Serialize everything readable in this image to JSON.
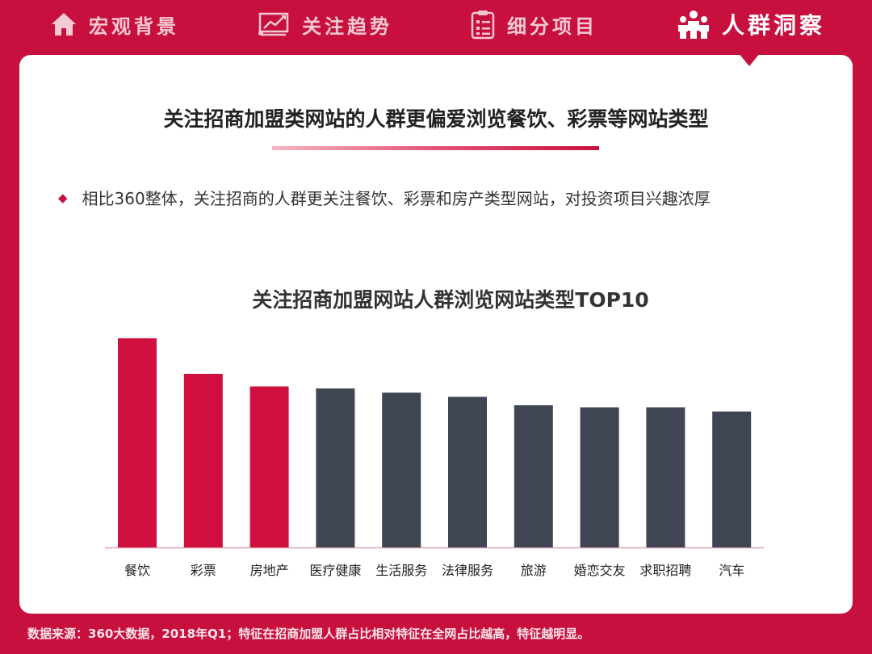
{
  "nav": {
    "items": [
      {
        "label": "宏观背景",
        "icon": "house-icon"
      },
      {
        "label": "关注趋势",
        "icon": "trend-chart-icon"
      },
      {
        "label": "细分项目",
        "icon": "clipboard-list-icon"
      },
      {
        "label": "人群洞察",
        "icon": "people-group-icon"
      }
    ],
    "active_index": 3
  },
  "headline": "关注招商加盟类网站的人群更偏爱浏览餐饮、彩票等网站类型",
  "bullet": "相比360整体，关注招商的人群更关注餐饮、彩票和房产类型网站，对投资项目兴趣浓厚",
  "colors": {
    "accent": "#c8103e",
    "highlight_bar": "#d0103f",
    "normal_bar": "#404553"
  },
  "chart_data": {
    "type": "bar",
    "title": "关注招商加盟网站人群浏览网站类型TOP10",
    "categories": [
      "餐饮",
      "彩票",
      "房地产",
      "医疗健康",
      "生活服务",
      "法律服务",
      "旅游",
      "婚恋交友",
      "求职招聘",
      "汽车"
    ],
    "values": [
      100,
      83,
      77,
      76,
      74,
      72,
      68,
      67,
      67,
      65
    ],
    "highlighted": [
      true,
      true,
      true,
      false,
      false,
      false,
      false,
      false,
      false,
      false
    ],
    "ylim": [
      0,
      100
    ],
    "xlabel": "",
    "ylabel": "",
    "grid": false,
    "legend": "none"
  },
  "footer": "数据来源：360大数据，2018年Q1；特征在招商加盟人群占比相对特征在全网占比越高，特征越明显。"
}
